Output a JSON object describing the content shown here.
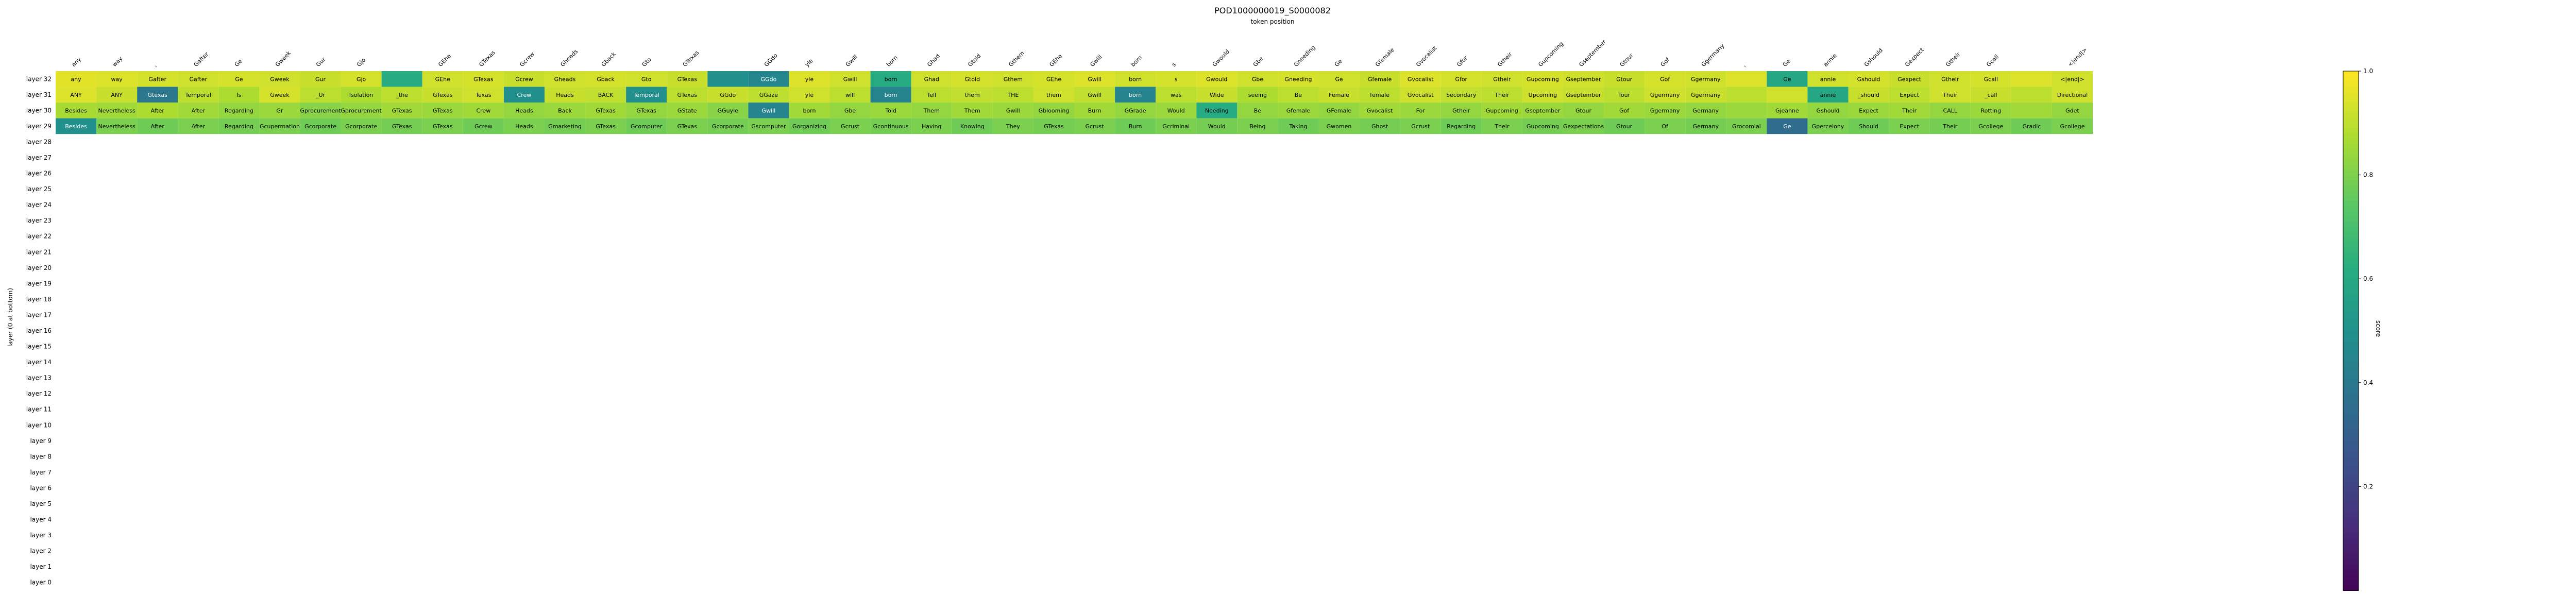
{
  "chart_data": {
    "type": "heatmap",
    "title": "POD1000000019_S0000082",
    "subtitle": "token position",
    "ylabel": "layer (0 at bottom)",
    "colorbar": {
      "label": "score",
      "range": [
        0.0,
        1.0
      ],
      "ticks": [
        "0.2",
        "0.4",
        "0.6",
        "0.8",
        "1.0"
      ],
      "colormap": [
        "#440154",
        "#472c7a",
        "#3b518b",
        "#2c718e",
        "#21908d",
        "#27ad81",
        "#5cc863",
        "#aadc32",
        "#fde725"
      ]
    },
    "x_tokens": [
      "any",
      "way",
      ",",
      "Gafter",
      "Ge",
      "Gweek",
      "Gur",
      "Gjo",
      "",
      "GEhe",
      "GTexas",
      "Gcrew",
      "Gheads",
      "Gback",
      "Gto",
      "GTexas",
      "",
      "GGdo",
      "yle",
      "Gwill",
      "born",
      "Ghad",
      "Gtold",
      "Gthem",
      "GEhe",
      "Gwill",
      "born",
      "s",
      "Gwould",
      "Gbe",
      "Gneeding",
      "Ge",
      "Gfemale",
      "Gvocalist",
      "Gfor",
      "Gtheir",
      "Gupcoming",
      "Gseptember",
      "Gtour",
      "Gof",
      "Ggermany",
      ",",
      "Ge",
      "annie",
      "Gshould",
      "Gexpect",
      "Gtheir",
      "Gcall",
      "",
      "<|end|>"
    ],
    "layers": [
      "layer 32",
      "layer 31",
      "layer 30",
      "layer 29",
      "layer 28",
      "layer 27",
      "layer 26",
      "layer 25",
      "layer 24",
      "layer 23",
      "layer 22",
      "layer 21",
      "layer 20",
      "layer 19",
      "layer 18",
      "layer 17",
      "layer 16",
      "layer 15",
      "layer 14",
      "layer 13",
      "layer 12",
      "layer 11",
      "layer 10",
      "layer 9",
      "layer 8",
      "layer 7",
      "layer 6",
      "layer 5",
      "layer 4",
      "layer 3",
      "layer 2",
      "layer 1",
      "layer 0"
    ],
    "rows": [
      {
        "labels": [
          "any",
          "way",
          "Gafter",
          "Gafter",
          "Ge",
          "Gweek",
          "Gur",
          "Gjo",
          "",
          "GEhe",
          "GTexas",
          "Gcrew",
          "Gheads",
          "Gback",
          "Gto",
          "GTexas",
          "",
          "GGdo",
          "yle",
          "Gwill",
          "born",
          "Ghad",
          "Gtold",
          "Gthem",
          "GEhe",
          "Gwill",
          "born",
          "s",
          "Gwould",
          "Gbe",
          "Gneeding",
          "Ge",
          "Gfemale",
          "Gvocalist",
          "Gfor",
          "Gtheir",
          "Gupcoming",
          "Gseptember",
          "Gtour",
          "Gof",
          "Ggermany",
          "",
          "Ge",
          "annie",
          "Gshould",
          "Gexpect",
          "Gtheir",
          "Gcall",
          "",
          "<|end|>"
        ],
        "values": [
          0.96,
          0.95,
          0.94,
          0.93,
          0.94,
          0.93,
          0.92,
          0.94,
          0.62,
          0.93,
          0.94,
          0.92,
          0.93,
          0.94,
          0.93,
          0.92,
          0.5,
          0.46,
          0.95,
          0.93,
          0.62,
          0.93,
          0.94,
          0.93,
          0.94,
          0.95,
          0.93,
          0.94,
          0.95,
          0.93,
          0.94,
          0.93,
          0.92,
          0.95,
          0.94,
          0.93,
          0.94,
          0.93,
          0.92,
          0.94,
          0.93,
          0.95,
          0.6,
          0.93,
          0.94,
          0.92,
          0.93,
          0.94,
          0.95,
          0.93
        ]
      },
      {
        "labels": [
          "ANY",
          "ANY",
          "Gtexas",
          "Temporal",
          "Is",
          "Gweek",
          "_Ur",
          "Isolation",
          "_the",
          "GTexas",
          "Texas",
          "Crew",
          "Heads",
          "BACK",
          "Temporal",
          "GTexas",
          "GGdo",
          "GGaze",
          "yle",
          "will",
          "born",
          "Tell",
          "them",
          "THE",
          "them",
          "Gwill",
          "born",
          "was",
          "Wide",
          "seeing",
          "Be",
          "Female",
          "female",
          "Gvocalist",
          "Secondary",
          "Their",
          "Upcoming",
          "Gseptember",
          "Tour",
          "Ggermany",
          "Ggermany",
          "",
          "",
          "annie",
          "_should",
          "Expect",
          "Their",
          "_call",
          "",
          "Directional"
        ],
        "values": [
          0.95,
          0.92,
          0.4,
          0.9,
          0.88,
          0.94,
          0.9,
          0.88,
          0.9,
          0.92,
          0.93,
          0.5,
          0.92,
          0.91,
          0.5,
          0.9,
          0.92,
          0.9,
          0.93,
          0.9,
          0.45,
          0.9,
          0.91,
          0.9,
          0.93,
          0.91,
          0.45,
          0.9,
          0.92,
          0.88,
          0.9,
          0.92,
          0.9,
          0.93,
          0.91,
          0.9,
          0.93,
          0.92,
          0.9,
          0.93,
          0.92,
          0.9,
          0.93,
          0.6,
          0.92,
          0.9,
          0.93,
          0.92,
          0.9,
          0.93
        ]
      },
      {
        "labels": [
          "Besides",
          "Nevertheless",
          "After",
          "After",
          "Regarding",
          "Gr",
          "Gprocurement",
          "Gprocurement",
          "GTexas",
          "GTexas",
          "Crew",
          "Heads",
          "Back",
          "GTexas",
          "GTexas",
          "GState",
          "GGuyle",
          "Gwill",
          "born",
          "Gbe",
          "Told",
          "Them",
          "Them",
          "Gwill",
          "Gblooming",
          "Burn",
          "GGrade",
          "Would",
          "Needing",
          "Be",
          "Gfemale",
          "GFemale",
          "Gvocalist",
          "For",
          "Gtheir",
          "Gupcoming",
          "Gseptember",
          "Gtour",
          "Gof",
          "Ggermany",
          "Germany",
          "",
          "Gjeanne",
          "Gshould",
          "Expect",
          "Their",
          "CALL",
          "Rotting",
          "",
          "Gdet"
        ],
        "values": [
          0.87,
          0.86,
          0.88,
          0.86,
          0.84,
          0.85,
          0.82,
          0.84,
          0.86,
          0.85,
          0.86,
          0.84,
          0.85,
          0.86,
          0.84,
          0.85,
          0.82,
          0.45,
          0.86,
          0.84,
          0.85,
          0.84,
          0.86,
          0.85,
          0.84,
          0.86,
          0.84,
          0.85,
          0.62,
          0.84,
          0.85,
          0.84,
          0.86,
          0.85,
          0.84,
          0.86,
          0.85,
          0.84,
          0.86,
          0.85,
          0.84,
          0.85,
          0.86,
          0.84,
          0.85,
          0.86,
          0.84,
          0.85,
          0.86,
          0.84
        ]
      },
      {
        "labels": [
          "Besides",
          "Nevertheless",
          "After",
          "After",
          "Regarding",
          "Gcupermation",
          "Gcorporate",
          "Gcorporate",
          "GTexas",
          "GTexas",
          "Gcrew",
          "Heads",
          "Gmarketing",
          "GTexas",
          "Gcomputer",
          "GTexas",
          "Gcorporate",
          "Gscomputer",
          "Gorganizing",
          "Gcrust",
          "Gcontinuous",
          "Having",
          "Knowing",
          "They",
          "GTexas",
          "Gcrust",
          "Burn",
          "Gcriminal",
          "Would",
          "Being",
          "Taking",
          "Gwomen",
          "Ghost",
          "Gcrust",
          "Regarding",
          "Their",
          "Gupcoming",
          "Gexpectations",
          "Gtour",
          "Of",
          "Germany",
          "Grocomial",
          "Ge",
          "Gpercelony",
          "Should",
          "Expect",
          "Their",
          "Gcollege",
          "Gradic",
          "Gcollege"
        ],
        "values": [
          0.5,
          0.8,
          0.78,
          0.8,
          0.79,
          0.8,
          0.78,
          0.8,
          0.79,
          0.8,
          0.78,
          0.8,
          0.79,
          0.8,
          0.78,
          0.8,
          0.79,
          0.8,
          0.78,
          0.8,
          0.79,
          0.8,
          0.78,
          0.8,
          0.79,
          0.8,
          0.78,
          0.8,
          0.79,
          0.8,
          0.78,
          0.8,
          0.79,
          0.8,
          0.78,
          0.8,
          0.79,
          0.8,
          0.78,
          0.8,
          0.79,
          0.8,
          0.35,
          0.8,
          0.78,
          0.8,
          0.79,
          0.8,
          0.78,
          0.8
        ]
      }
    ]
  }
}
